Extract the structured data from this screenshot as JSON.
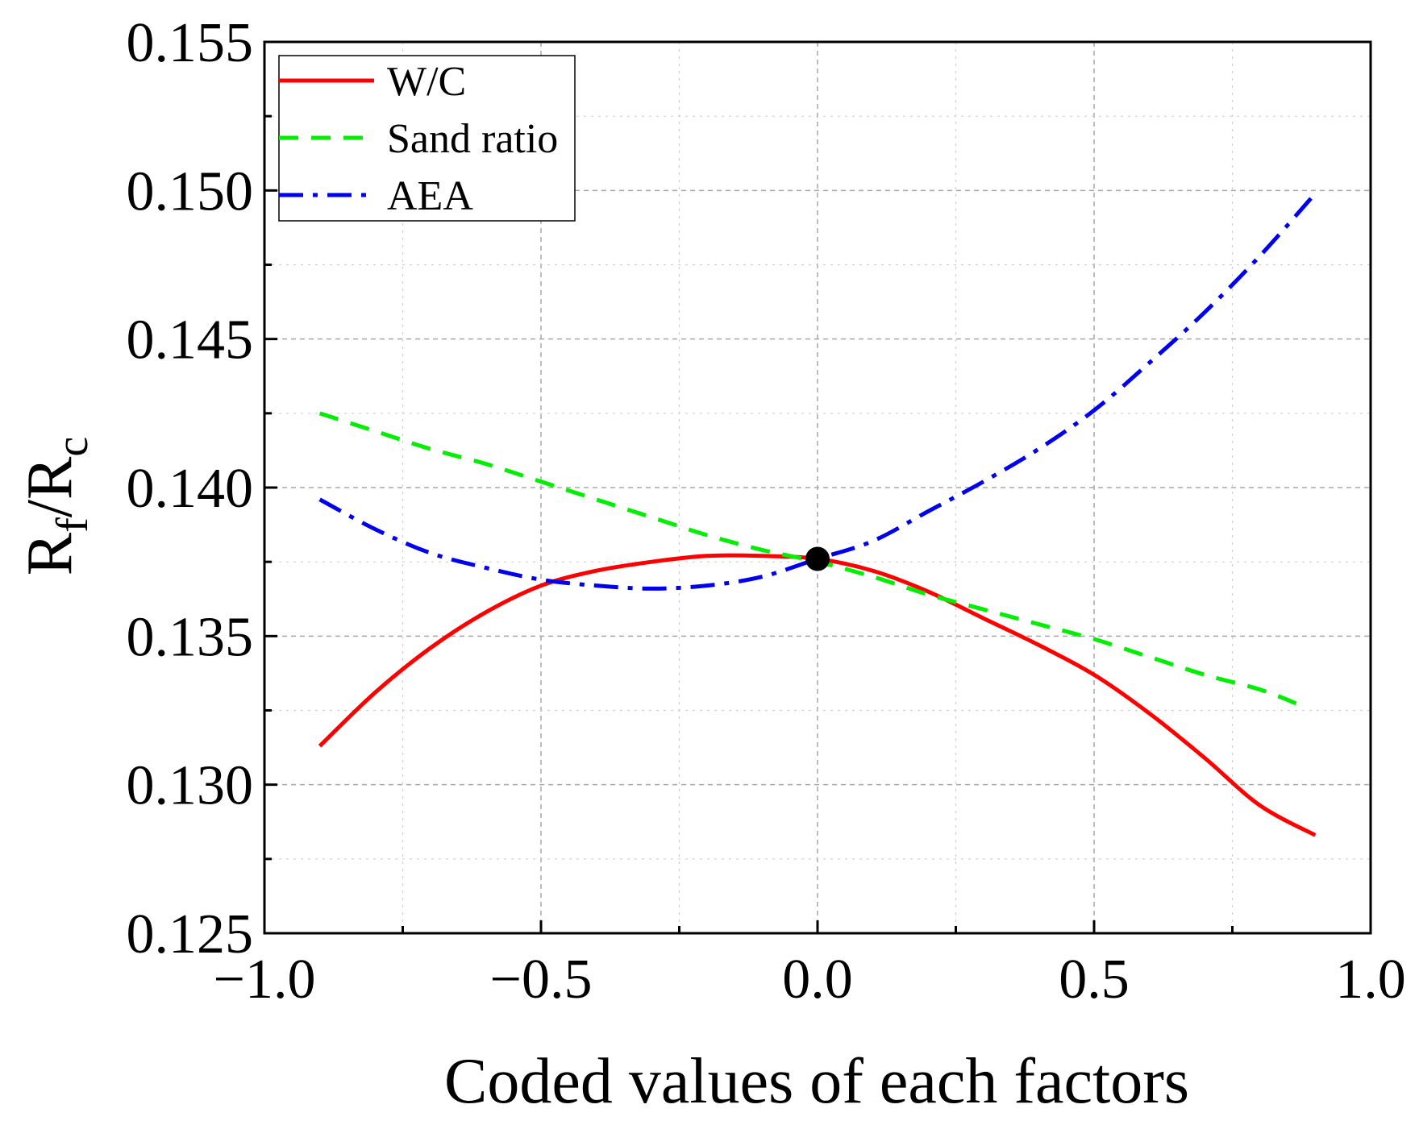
{
  "chart_data": {
    "type": "line",
    "title": "",
    "xlabel": "Coded values of each factors",
    "ylabel": {
      "main": "R",
      "sub1": "f",
      "slash": "/R",
      "sub2": "c"
    },
    "xlim": [
      -1.0,
      1.0
    ],
    "ylim": [
      0.125,
      0.155
    ],
    "xticks": [
      -1.0,
      -0.5,
      0.0,
      0.5,
      1.0
    ],
    "xtick_labels": [
      "−1.0",
      "−0.5",
      "0.0",
      "0.5",
      "1.0"
    ],
    "xminor_ticks": [
      -0.75,
      -0.25,
      0.25,
      0.75
    ],
    "yticks": [
      0.125,
      0.13,
      0.135,
      0.14,
      0.145,
      0.15,
      0.155
    ],
    "ytick_labels": [
      "0.125",
      "0.130",
      "0.135",
      "0.140",
      "0.145",
      "0.150",
      "0.155"
    ],
    "yminor_ticks": [
      0.1275,
      0.1325,
      0.1375,
      0.1425,
      0.1475,
      0.1525
    ],
    "grid": true,
    "legend_position": "top-left",
    "series": [
      {
        "name": "W/C",
        "color": "#ff0000",
        "style": "solid",
        "x": [
          -0.9,
          -0.8,
          -0.7,
          -0.6,
          -0.5,
          -0.4,
          -0.3,
          -0.2,
          -0.1,
          0.0,
          0.1,
          0.2,
          0.3,
          0.4,
          0.5,
          0.6,
          0.7,
          0.8,
          0.9
        ],
        "y": [
          0.1313,
          0.1331,
          0.1346,
          0.1358,
          0.1367,
          0.1372,
          0.1375,
          0.1377,
          0.1377,
          0.1376,
          0.1372,
          0.1365,
          0.1356,
          0.1347,
          0.1337,
          0.1324,
          0.1309,
          0.1293,
          0.1283
        ]
      },
      {
        "name": "Sand ratio",
        "color": "#00ee00",
        "style": "dashed",
        "x": [
          -0.9,
          -0.8,
          -0.7,
          -0.6,
          -0.5,
          -0.4,
          -0.3,
          -0.2,
          -0.1,
          0.0,
          0.1,
          0.2,
          0.3,
          0.4,
          0.5,
          0.6,
          0.7,
          0.8,
          0.87
        ],
        "y": [
          0.1425,
          0.1419,
          0.1413,
          0.1408,
          0.1402,
          0.1396,
          0.139,
          0.1384,
          0.1379,
          0.1375,
          0.137,
          0.1364,
          0.1359,
          0.1354,
          0.1349,
          0.1343,
          0.1337,
          0.1332,
          0.1327
        ]
      },
      {
        "name": "AEA",
        "color": "#0000ee",
        "style": "dashdot",
        "x": [
          -0.9,
          -0.8,
          -0.7,
          -0.6,
          -0.5,
          -0.4,
          -0.3,
          -0.2,
          -0.1,
          0.0,
          0.1,
          0.2,
          0.3,
          0.4,
          0.5,
          0.6,
          0.7,
          0.8,
          0.9
        ],
        "y": [
          0.1396,
          0.1386,
          0.1378,
          0.1373,
          0.1369,
          0.1367,
          0.1366,
          0.1367,
          0.137,
          0.1376,
          0.1382,
          0.1392,
          0.1402,
          0.1413,
          0.1426,
          0.1442,
          0.1459,
          0.1478,
          0.1499
        ]
      }
    ],
    "annotations": [
      {
        "type": "marker",
        "x": 0.0,
        "y": 0.1376,
        "color": "#000000",
        "label": ""
      }
    ]
  }
}
